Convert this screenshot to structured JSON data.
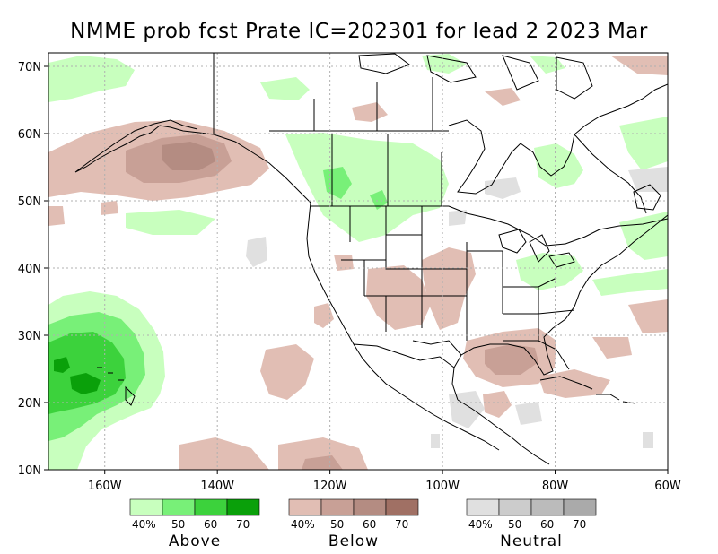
{
  "title": "NMME prob fcst Prate IC=202301 for lead 2 2023 Mar",
  "colors": {
    "above": [
      "#c8ffbe",
      "#78f078",
      "#3cd23c",
      "#0aa00a"
    ],
    "below": [
      "#e1beb4",
      "#c8a096",
      "#b48c82",
      "#a07064"
    ],
    "neutral": [
      "#e0e0e0",
      "#cccccc",
      "#bbbbbb",
      "#aaaaaa"
    ],
    "grid": "#b0b0b0",
    "coast": "#000000"
  },
  "axes": {
    "x_ticks": [
      {
        "value": -160,
        "label": "160W"
      },
      {
        "value": -140,
        "label": "140W"
      },
      {
        "value": -120,
        "label": "120W"
      },
      {
        "value": -100,
        "label": "100W"
      },
      {
        "value": -80,
        "label": "80W"
      },
      {
        "value": -60,
        "label": "60W"
      }
    ],
    "y_ticks": [
      {
        "value": 10,
        "label": "10N"
      },
      {
        "value": 20,
        "label": "20N"
      },
      {
        "value": 30,
        "label": "30N"
      },
      {
        "value": 40,
        "label": "40N"
      },
      {
        "value": 50,
        "label": "50N"
      },
      {
        "value": 60,
        "label": "60N"
      },
      {
        "value": 70,
        "label": "70N"
      }
    ],
    "lon_range": [
      -170,
      -60
    ],
    "lat_range": [
      10,
      72
    ],
    "grid": true
  },
  "legend": [
    {
      "title": "Above",
      "labels": [
        "40%",
        "50",
        "60",
        "70"
      ]
    },
    {
      "title": "Below",
      "labels": [
        "40%",
        "50",
        "60",
        "70"
      ]
    },
    {
      "title": "Neutral",
      "labels": [
        "40%",
        "50",
        "60",
        "70"
      ]
    }
  ]
}
